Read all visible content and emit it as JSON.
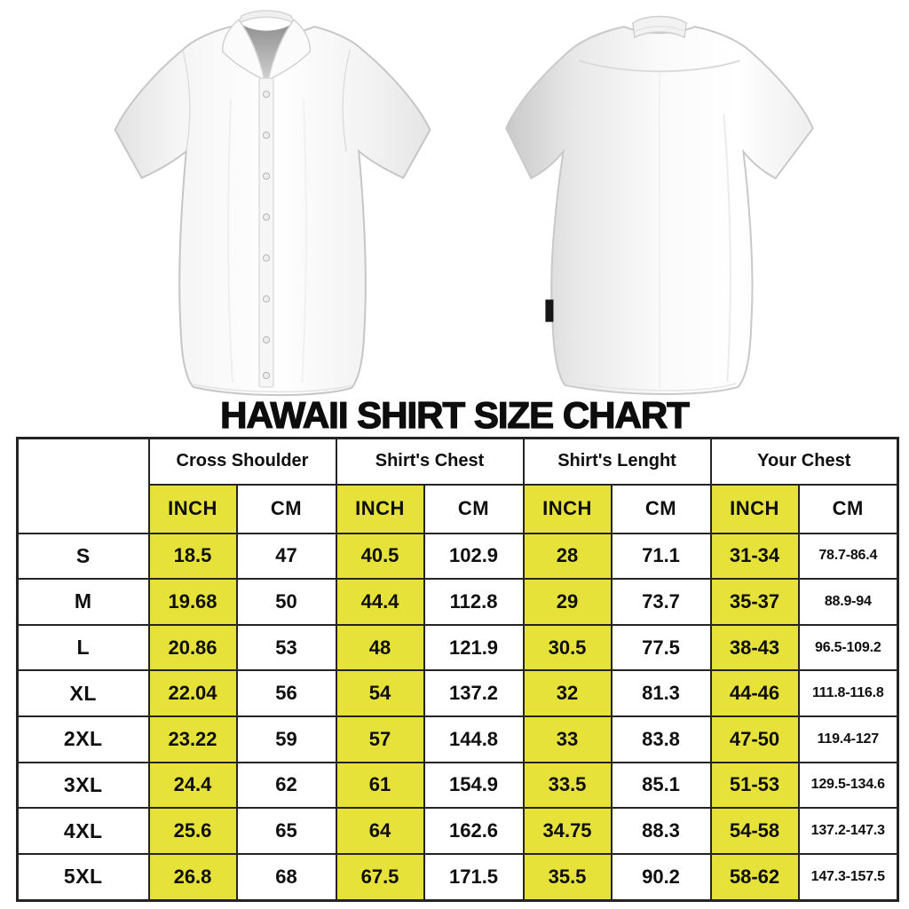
{
  "title": "HAWAII SHIRT SIZE CHART",
  "images": {
    "front_shirt": "white short-sleeve button-up shirt, front view",
    "back_shirt": "white short-sleeve button-up shirt, back view"
  },
  "chart_data": {
    "type": "table",
    "title": "HAWAII SHIRT SIZE CHART",
    "highlight_color": "#e7e23a",
    "corner_header": "",
    "column_groups": [
      "Cross Shoulder",
      "Shirt's Chest",
      "Shirt's Lenght",
      "Your Chest"
    ],
    "sub_columns": [
      "INCH",
      "CM"
    ],
    "rows": [
      [
        "S",
        "18.5",
        "47",
        "40.5",
        "102.9",
        "28",
        "71.1",
        "31-34",
        "78.7-86.4"
      ],
      [
        "M",
        "19.68",
        "50",
        "44.4",
        "112.8",
        "29",
        "73.7",
        "35-37",
        "88.9-94"
      ],
      [
        "L",
        "20.86",
        "53",
        "48",
        "121.9",
        "30.5",
        "77.5",
        "38-43",
        "96.5-109.2"
      ],
      [
        "XL",
        "22.04",
        "56",
        "54",
        "137.2",
        "32",
        "81.3",
        "44-46",
        "111.8-116.8"
      ],
      [
        "2XL",
        "23.22",
        "59",
        "57",
        "144.8",
        "33",
        "83.8",
        "47-50",
        "119.4-127"
      ],
      [
        "3XL",
        "24.4",
        "62",
        "61",
        "154.9",
        "33.5",
        "85.1",
        "51-53",
        "129.5-134.6"
      ],
      [
        "4XL",
        "25.6",
        "65",
        "64",
        "162.6",
        "34.75",
        "88.3",
        "54-58",
        "137.2-147.3"
      ],
      [
        "5XL",
        "26.8",
        "68",
        "67.5",
        "171.5",
        "35.5",
        "90.2",
        "58-62",
        "147.3-157.5"
      ]
    ]
  }
}
